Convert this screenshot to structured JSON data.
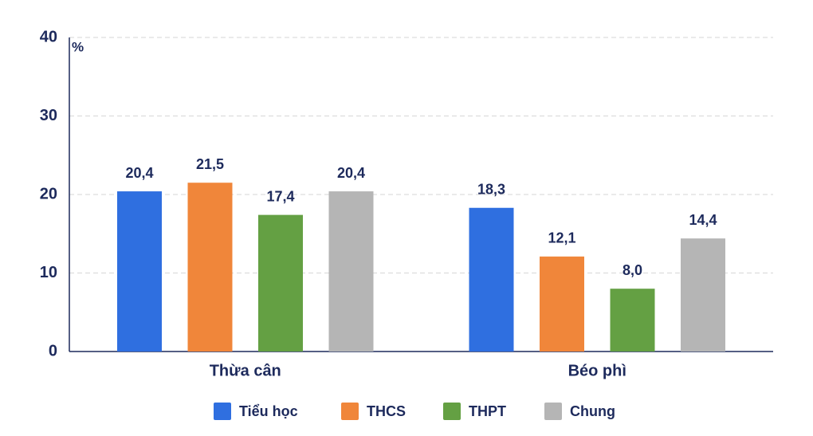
{
  "chart_data": {
    "type": "bar",
    "y_unit": "%",
    "categories": [
      "Thừa cân",
      "Béo phì"
    ],
    "series": [
      {
        "name": "Tiểu học",
        "color": "#2f6fe0",
        "values": [
          20.4,
          18.3
        ],
        "value_labels": [
          "20,4",
          "18,3"
        ]
      },
      {
        "name": "THCS",
        "color": "#f0863a",
        "values": [
          21.5,
          12.1
        ],
        "value_labels": [
          "21,5",
          "12,1"
        ]
      },
      {
        "name": "THPT",
        "color": "#64a043",
        "values": [
          17.4,
          8.0
        ],
        "value_labels": [
          "17,4",
          "8,0"
        ]
      },
      {
        "name": "Chung",
        "color": "#b5b5b5",
        "values": [
          20.4,
          14.4
        ],
        "value_labels": [
          "20,4",
          "14,4"
        ]
      }
    ],
    "ylim": [
      0,
      40
    ],
    "yticks": [
      0,
      10,
      20,
      30,
      40
    ],
    "grid": true
  }
}
